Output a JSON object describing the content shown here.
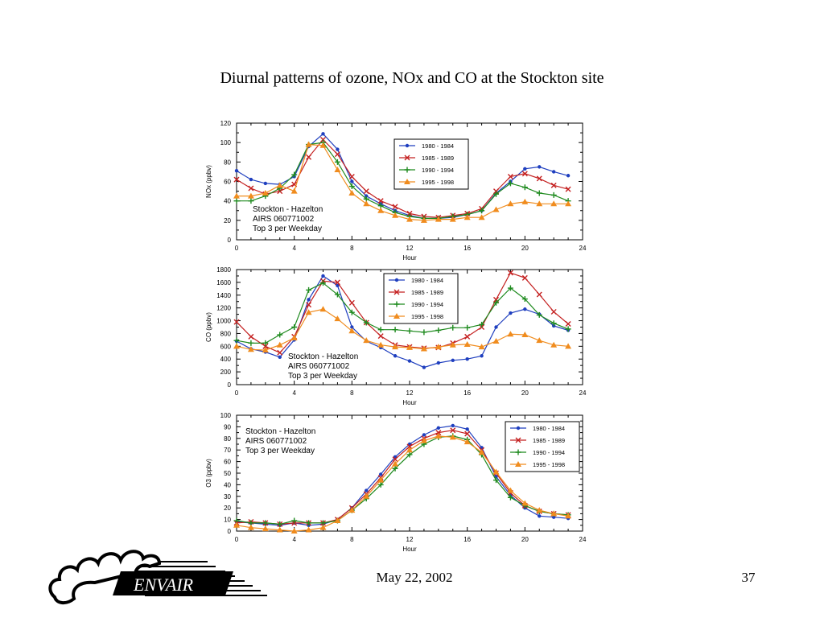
{
  "slide": {
    "title": "Diurnal patterns of ozone, NOx and CO at the Stockton site",
    "date": "May 22, 2002",
    "page": "37",
    "logo_text": "ENVAIR"
  },
  "colors": {
    "1980 - 1984": "#1f3fbf",
    "1985 - 1989": "#c42020",
    "1990 - 1994": "#1e8a1e",
    "1995 - 1998": "#f08c1e"
  },
  "chart_data": [
    {
      "type": "line",
      "ylabel": "NOx (ppbv)",
      "xlabel": "Hour",
      "xlim": [
        0,
        24
      ],
      "ylim": [
        0,
        120
      ],
      "xticks": [
        0,
        4,
        8,
        12,
        16,
        20,
        24
      ],
      "yticks": [
        0,
        20,
        40,
        60,
        80,
        100,
        120
      ],
      "annotation": [
        "Stockton - Hazelton",
        "AIRS 060771002",
        "Top 3 per Weekday"
      ],
      "legend_placement": "top-right",
      "x": [
        0,
        1,
        2,
        3,
        4,
        5,
        6,
        7,
        8,
        9,
        10,
        11,
        12,
        13,
        14,
        15,
        16,
        17,
        18,
        19,
        20,
        21,
        22,
        23
      ],
      "series": [
        {
          "name": "1980 - 1984",
          "marker": "dot",
          "values": [
            71,
            62,
            58,
            57,
            65,
            96,
            109,
            93,
            60,
            45,
            37,
            30,
            25,
            22,
            22,
            23,
            26,
            30,
            48,
            60,
            73,
            75,
            70,
            66
          ]
        },
        {
          "name": "1985 - 1989",
          "marker": "x",
          "values": [
            62,
            53,
            47,
            50,
            57,
            85,
            103,
            88,
            65,
            50,
            40,
            34,
            27,
            24,
            23,
            25,
            27,
            32,
            50,
            65,
            68,
            63,
            56,
            52
          ]
        },
        {
          "name": "1990 - 1994",
          "marker": "plus",
          "values": [
            40,
            40,
            45,
            53,
            67,
            98,
            100,
            80,
            55,
            42,
            35,
            28,
            24,
            22,
            22,
            24,
            26,
            30,
            47,
            58,
            54,
            48,
            46,
            40
          ]
        },
        {
          "name": "1995 - 1998",
          "marker": "triangle",
          "values": [
            45,
            45,
            48,
            56,
            50,
            98,
            97,
            72,
            48,
            37,
            30,
            25,
            21,
            20,
            21,
            21,
            23,
            23,
            31,
            37,
            39,
            37,
            37,
            37
          ]
        }
      ]
    },
    {
      "type": "line",
      "ylabel": "CO (ppbv)",
      "xlabel": "Hour",
      "xlim": [
        0,
        24
      ],
      "ylim": [
        0,
        1800
      ],
      "xticks": [
        0,
        4,
        8,
        12,
        16,
        20,
        24
      ],
      "yticks": [
        0,
        200,
        400,
        600,
        800,
        1000,
        1200,
        1400,
        1600,
        1800
      ],
      "annotation": [
        "Stockton - Hazelton",
        "AIRS 060771002",
        "Top 3 per Weekday"
      ],
      "legend_placement": "top-center",
      "x": [
        0,
        1,
        2,
        3,
        4,
        5,
        6,
        7,
        8,
        9,
        10,
        11,
        12,
        13,
        14,
        15,
        16,
        17,
        18,
        19,
        20,
        21,
        22,
        23
      ],
      "series": [
        {
          "name": "1980 - 1984",
          "marker": "dot",
          "values": [
            680,
            560,
            510,
            430,
            700,
            1330,
            1700,
            1550,
            900,
            680,
            580,
            450,
            370,
            270,
            340,
            380,
            400,
            450,
            900,
            1120,
            1180,
            1100,
            920,
            850
          ]
        },
        {
          "name": "1985 - 1989",
          "marker": "x",
          "values": [
            980,
            750,
            600,
            500,
            750,
            1250,
            1620,
            1600,
            1280,
            970,
            760,
            620,
            590,
            570,
            580,
            650,
            750,
            900,
            1330,
            1750,
            1670,
            1410,
            1140,
            950
          ]
        },
        {
          "name": "1990 - 1994",
          "marker": "plus",
          "values": [
            690,
            650,
            650,
            780,
            900,
            1480,
            1590,
            1410,
            1130,
            970,
            860,
            860,
            840,
            820,
            850,
            890,
            890,
            940,
            1280,
            1510,
            1340,
            1090,
            960,
            870
          ]
        },
        {
          "name": "1995 - 1998",
          "marker": "triangle",
          "values": [
            600,
            550,
            540,
            620,
            730,
            1130,
            1180,
            1030,
            840,
            690,
            620,
            590,
            580,
            560,
            590,
            620,
            630,
            590,
            680,
            790,
            780,
            690,
            620,
            600
          ]
        }
      ]
    },
    {
      "type": "line",
      "ylabel": "O3 (ppbv)",
      "xlabel": "Hour",
      "xlim": [
        0,
        24
      ],
      "ylim": [
        0,
        100
      ],
      "xticks": [
        0,
        4,
        8,
        12,
        16,
        20,
        24
      ],
      "yticks": [
        0,
        10,
        20,
        30,
        40,
        50,
        60,
        70,
        80,
        90,
        100
      ],
      "annotation": [
        "Stockton - Hazelton",
        "AIRS 060771002",
        "Top 3 per Weekday"
      ],
      "legend_placement": "top-right",
      "x": [
        0,
        1,
        2,
        3,
        4,
        5,
        6,
        7,
        8,
        9,
        10,
        11,
        12,
        13,
        14,
        15,
        16,
        17,
        18,
        19,
        20,
        21,
        22,
        23
      ],
      "series": [
        {
          "name": "1980 - 1984",
          "marker": "dot",
          "values": [
            8,
            7,
            6,
            5,
            7,
            5,
            6,
            10,
            20,
            35,
            49,
            64,
            75,
            83,
            89,
            91,
            88,
            72,
            47,
            31,
            20,
            13,
            12,
            11
          ]
        },
        {
          "name": "1985 - 1989",
          "marker": "x",
          "values": [
            7,
            8,
            7,
            6,
            7,
            7,
            7,
            10,
            20,
            32,
            46,
            62,
            73,
            80,
            85,
            87,
            84,
            70,
            50,
            33,
            22,
            17,
            15,
            14
          ]
        },
        {
          "name": "1990 - 1994",
          "marker": "plus",
          "values": [
            9,
            7,
            7,
            6,
            9,
            7,
            7,
            9,
            18,
            28,
            40,
            54,
            66,
            75,
            81,
            82,
            79,
            66,
            44,
            29,
            22,
            17,
            15,
            14
          ]
        },
        {
          "name": "1995 - 1998",
          "marker": "triangle",
          "values": [
            5,
            3,
            2,
            1,
            0,
            1,
            3,
            9,
            18,
            30,
            44,
            58,
            70,
            78,
            82,
            81,
            77,
            68,
            51,
            35,
            24,
            18,
            15,
            13
          ]
        }
      ]
    }
  ]
}
